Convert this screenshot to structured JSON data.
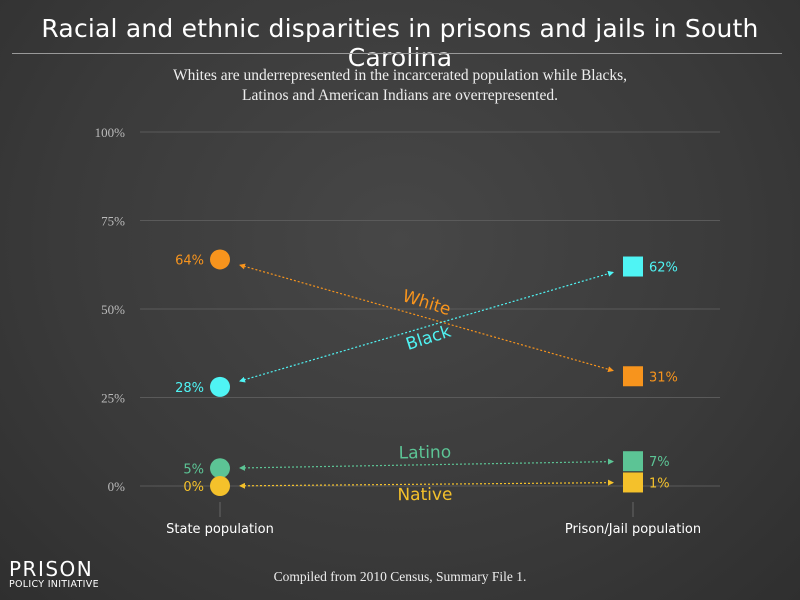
{
  "title": "Racial and ethnic disparities in prisons and jails in South Carolina",
  "subtitle": "Whites are underrepresented in the incarcerated population while Blacks, Latinos and American Indians are overrepresented.",
  "source": "Compiled from 2010 Census, Summary File 1.",
  "logo": {
    "line1": "PRISON",
    "line2": "POLICY INITIATIVE"
  },
  "chart_data": {
    "type": "slope",
    "categories": [
      "State population",
      "Prison/Jail population"
    ],
    "ylim": [
      0,
      100
    ],
    "yticks": [
      0,
      25,
      50,
      75,
      100
    ],
    "ytick_labels": [
      "0%",
      "25%",
      "50%",
      "75%",
      "100%"
    ],
    "grid": true,
    "series": [
      {
        "name": "White",
        "values": [
          64,
          31
        ],
        "labels": [
          "64%",
          "31%"
        ],
        "color": "#f7941d"
      },
      {
        "name": "Black",
        "values": [
          28,
          62
        ],
        "labels": [
          "28%",
          "62%"
        ],
        "color": "#4ff4f4"
      },
      {
        "name": "Latino",
        "values": [
          5,
          7
        ],
        "labels": [
          "5%",
          "7%"
        ],
        "color": "#5cc495"
      },
      {
        "name": "Native",
        "values": [
          0,
          1
        ],
        "labels": [
          "0%",
          "1%"
        ],
        "color": "#f4c12b"
      }
    ]
  }
}
